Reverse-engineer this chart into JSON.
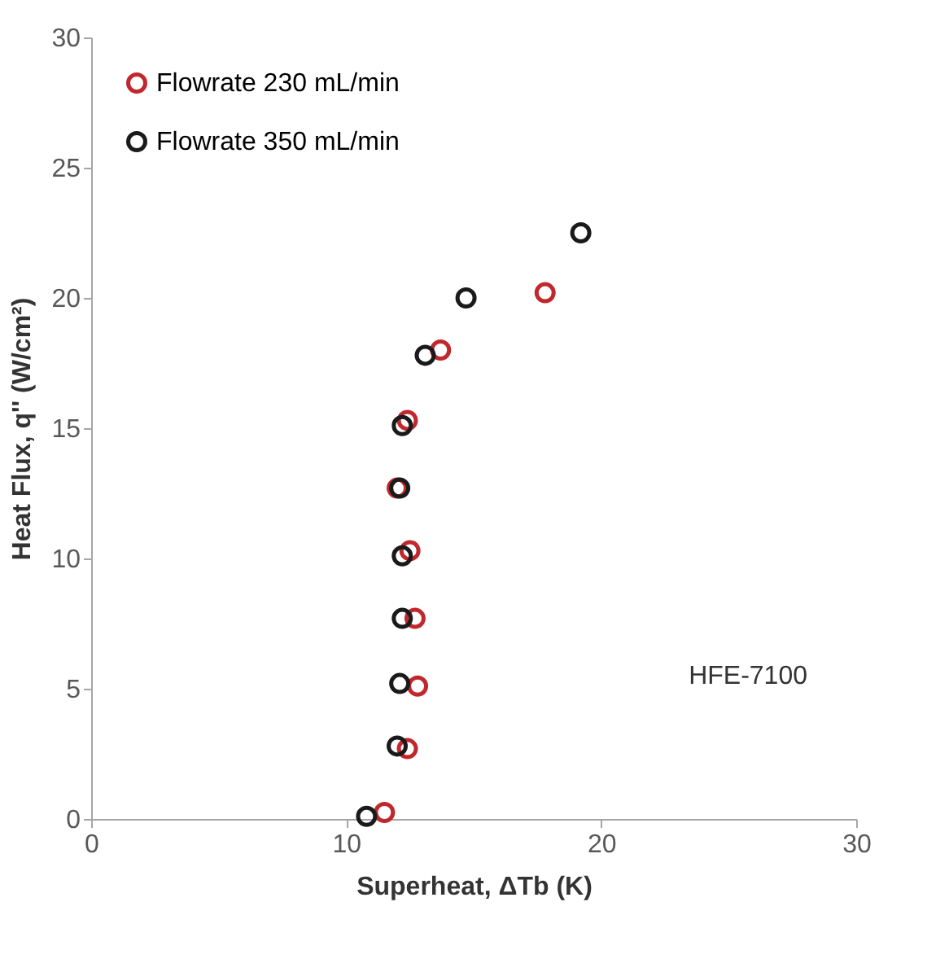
{
  "chart_data": {
    "type": "scatter",
    "xlabel": "Superheat, ΔTb (K)",
    "ylabel": "Heat Flux, q'' (W/cm²)",
    "xlim": [
      0,
      30
    ],
    "xticks": [
      0,
      10,
      20,
      30
    ],
    "ylim": [
      0,
      30
    ],
    "yticks": [
      0,
      5,
      10,
      15,
      20,
      25,
      30
    ],
    "grid": false,
    "legend": "top left",
    "marker": "circle",
    "annotations": [
      "HFE-7100"
    ],
    "series": [
      {
        "name": "Flowrate 230 mL/min",
        "color": "#c0282d",
        "x": [
          11.5,
          12.4,
          12.8,
          12.7,
          12.5,
          12.0,
          12.4,
          13.7,
          17.8
        ],
        "values": [
          0.25,
          2.7,
          5.1,
          7.7,
          10.3,
          12.7,
          15.3,
          18.0,
          20.2
        ]
      },
      {
        "name": "Flowrate 350 mL/min",
        "color": "#1a1a1a",
        "x": [
          10.8,
          12.0,
          12.1,
          12.2,
          12.2,
          12.1,
          12.2,
          13.1,
          14.7,
          19.2
        ],
        "values": [
          0.1,
          2.8,
          5.2,
          7.7,
          10.1,
          12.7,
          15.1,
          17.8,
          20.0,
          22.5
        ]
      }
    ]
  }
}
